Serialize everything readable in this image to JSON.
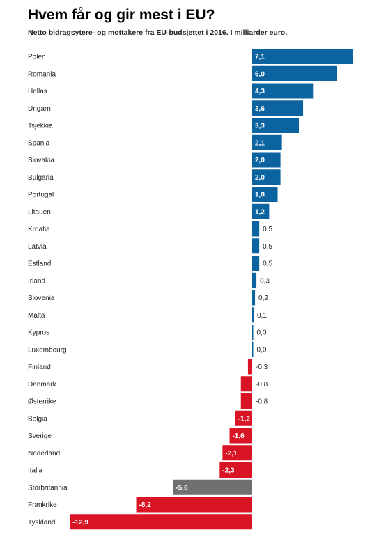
{
  "title": "Hvem får og gir mest i EU?",
  "subtitle": "Netto bidragsytere- og mottakere fra EU-budsjettet i 2016. I milliarder euro.",
  "colors": {
    "positive": "#0b64a0",
    "negative": "#d91425",
    "highlight": "#707070",
    "inside_label": "#ffffff",
    "outside_label": "#222222",
    "category_label": "#222222"
  },
  "chart_data": {
    "type": "bar",
    "orientation": "horizontal",
    "highlight_category": "Storbritannia",
    "xlim": [
      -12.9,
      7.1
    ],
    "grid": false,
    "legend": "none",
    "categories": [
      "Polen",
      "Romania",
      "Hellas",
      "Ungarn",
      "Tsjekkia",
      "Spania",
      "Slovakia",
      "Bulgaria",
      "Portugal",
      "Litauen",
      "Kroatia",
      "Latvia",
      "Estland",
      "Irland",
      "Slovenia",
      "Malta",
      "Kypros",
      "Luxembourg",
      "Finland",
      "Danmark",
      "Østerrike",
      "Belgia",
      "Sverige",
      "Nederland",
      "Italia",
      "Storbritannia",
      "Frankrike",
      "Tyskland"
    ],
    "values": [
      7.1,
      6.0,
      4.3,
      3.6,
      3.3,
      2.1,
      2.0,
      2.0,
      1.8,
      1.2,
      0.5,
      0.5,
      0.5,
      0.3,
      0.2,
      0.1,
      0.0,
      0.0,
      -0.3,
      -0.8,
      -0.8,
      -1.2,
      -1.6,
      -2.1,
      -2.3,
      -5.6,
      -8.2,
      -12.9
    ],
    "value_labels": [
      "7,1",
      "6,0",
      "4,3",
      "3,6",
      "3,3",
      "2,1",
      "2,0",
      "2,0",
      "1,8",
      "1,2",
      "0,5",
      "0,5",
      "0,5",
      "0,3",
      "0,2",
      "0,1",
      "0,0",
      "0,0",
      "-0,3",
      "-0,8",
      "-0,8",
      "-1,2",
      "-1,6",
      "-2,1",
      "-2,3",
      "-5,6",
      "-8,2",
      "-12,9"
    ]
  }
}
